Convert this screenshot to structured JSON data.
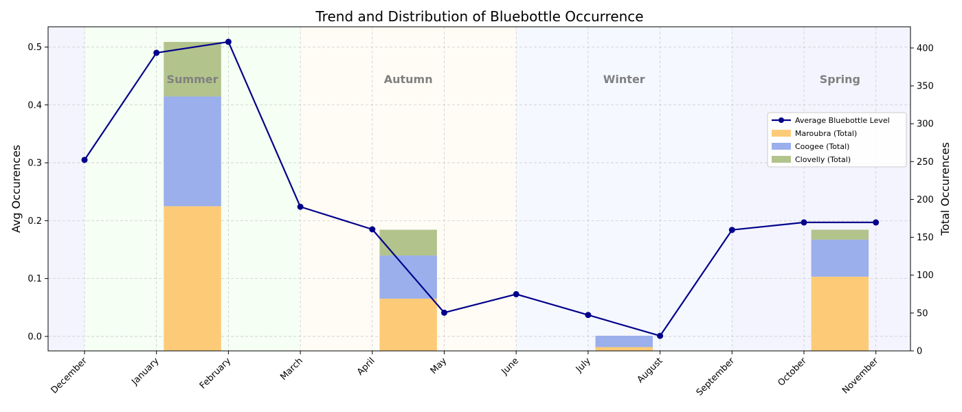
{
  "chart_data": {
    "type": "bar",
    "title": "Trend and Distribution of Bluebottle Occurrence",
    "ylabel_left": "Avg Occurences",
    "ylabel_right": "Total Occurences",
    "categories": [
      "December",
      "January",
      "February",
      "March",
      "April",
      "May",
      "June",
      "July",
      "August",
      "September",
      "October",
      "November"
    ],
    "ylim_left": [
      -0.025,
      0.535
    ],
    "ylim_right": [
      0,
      428
    ],
    "yticks_left": [
      0.0,
      0.1,
      0.2,
      0.3,
      0.4,
      0.5
    ],
    "yticks_right": [
      0,
      50,
      100,
      150,
      200,
      250,
      300,
      350,
      400
    ],
    "grid": true,
    "legend_position": "upper right",
    "line_series": {
      "name": "Average Bluebottle Level",
      "color": "#00008B",
      "values": [
        0.305,
        0.49,
        0.509,
        0.224,
        0.185,
        0.041,
        0.073,
        0.037,
        0.001,
        0.184,
        0.197,
        0.197
      ]
    },
    "bar_groups": [
      {
        "position": 1.5,
        "values": [
          191,
          145,
          72
        ]
      },
      {
        "position": 4.5,
        "values": [
          69,
          57,
          34
        ]
      },
      {
        "position": 7.5,
        "values": [
          5,
          15,
          0
        ]
      },
      {
        "position": 10.5,
        "values": [
          98,
          49,
          13
        ]
      }
    ],
    "bar_series": [
      {
        "name": "Maroubra (Total)",
        "color": "#FDCB78"
      },
      {
        "name": "Coogee (Total)",
        "color": "#9AAFEB"
      },
      {
        "name": "Clovelly (Total)",
        "color": "#B3C38C"
      }
    ],
    "seasons": [
      {
        "name": "Summer",
        "start": 0,
        "end": 3,
        "color": "#F5FFF3",
        "show_label": true
      },
      {
        "name": "Autumn",
        "start": 3,
        "end": 6,
        "color": "#FFFCF5",
        "show_label": true
      },
      {
        "name": "Winter",
        "start": 6,
        "end": 9,
        "color": "#F5F8FF",
        "show_label": true
      },
      {
        "name": "Spring",
        "start": 9,
        "end": 12,
        "color": "#F4F4FF",
        "show_label": true
      }
    ],
    "season_label_y": 0.445,
    "edge_color": "#F4F4FF"
  }
}
